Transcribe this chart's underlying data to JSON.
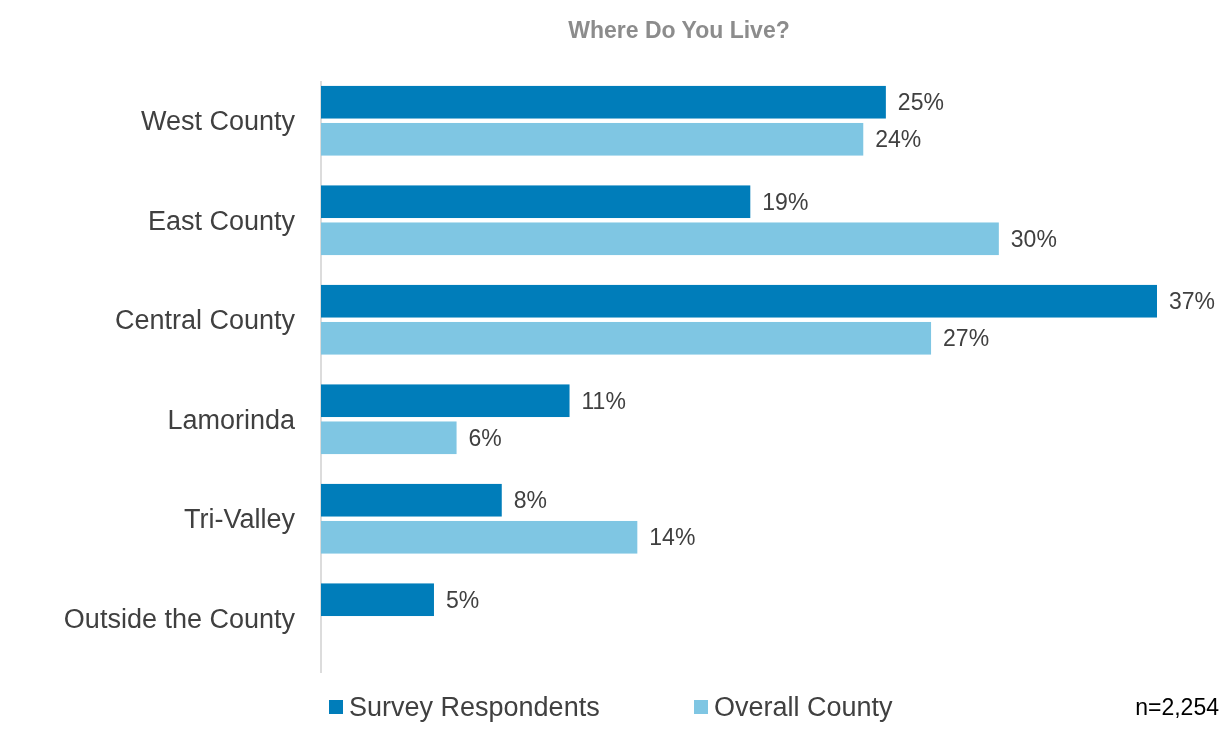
{
  "chart_data": {
    "type": "bar",
    "orientation": "horizontal",
    "title": "Where Do You Live?",
    "categories": [
      "West County",
      "East County",
      "Central County",
      "Lamorinda",
      "Tri-Valley",
      "Outside the County"
    ],
    "series": [
      {
        "name": "Survey Respondents",
        "color": "#007dba",
        "values": [
          25,
          19,
          37,
          11,
          8,
          5
        ],
        "value_labels": [
          "25%",
          "19%",
          "37%",
          "11%",
          "8%",
          "5%"
        ]
      },
      {
        "name": "Overall County",
        "color": "#7fc6e3",
        "values": [
          24,
          30,
          27,
          6,
          14,
          null
        ],
        "value_labels": [
          "24%",
          "30%",
          "27%",
          "6%",
          "14%",
          null
        ]
      }
    ],
    "legend": "bottom",
    "annotations": [
      "n=2,254"
    ]
  }
}
